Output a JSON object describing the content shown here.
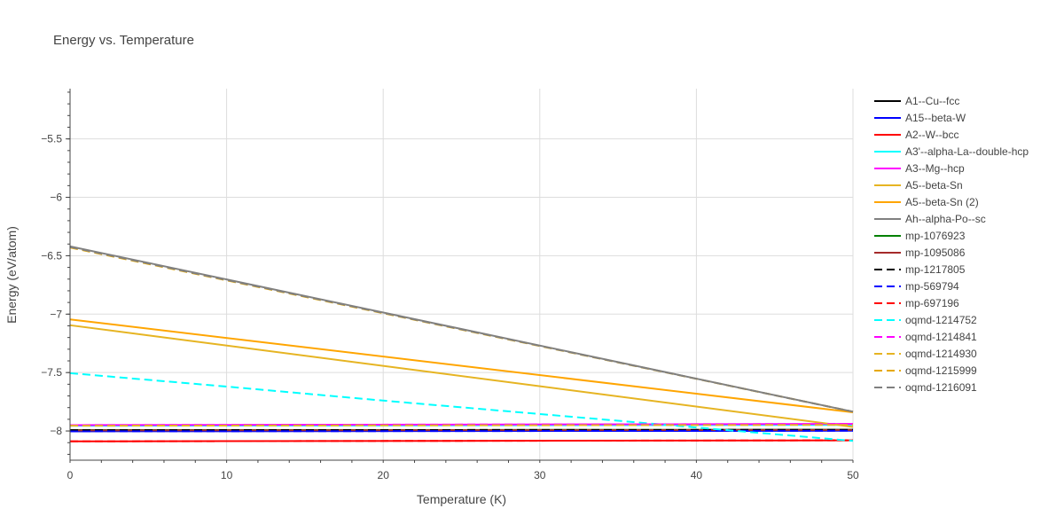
{
  "chart_data": {
    "type": "line",
    "title": "Energy vs. Temperature",
    "xlabel": "Temperature (K)",
    "ylabel": "Energy (eV/atom)",
    "xlim": [
      0,
      50
    ],
    "ylim": [
      -8.25,
      -5.07
    ],
    "x_ticks": [
      0,
      10,
      20,
      30,
      40,
      50
    ],
    "x_tick_labels": [
      "0",
      "10",
      "20",
      "30",
      "40",
      "50"
    ],
    "y_ticks": [
      -8,
      -7.5,
      -7,
      -6.5,
      -6,
      -5.5
    ],
    "y_tick_labels": [
      "−8",
      "−7.5",
      "−7",
      "−6.5",
      "−6",
      "−5.5"
    ],
    "grid": true,
    "legend_position": "right",
    "series": [
      {
        "name": "A1--Cu--fcc",
        "color": "#000000",
        "dash": "solid",
        "x": [
          0,
          50
        ],
        "y": [
          -7.993,
          -7.99
        ]
      },
      {
        "name": "A15--beta-W",
        "color": "#0000ff",
        "dash": "solid",
        "x": [
          0,
          50
        ],
        "y": [
          -8.003,
          -7.998
        ]
      },
      {
        "name": "A2--W--bcc",
        "color": "#ff0000",
        "dash": "solid",
        "x": [
          0,
          50
        ],
        "y": [
          -8.089,
          -8.08
        ]
      },
      {
        "name": "A3'--alpha-La--double-hcp",
        "color": "#00ffff",
        "dash": "solid",
        "x": [
          0,
          50
        ],
        "y": [
          -7.955,
          -7.948
        ]
      },
      {
        "name": "A3--Mg--hcp",
        "color": "#ff00ff",
        "dash": "solid",
        "x": [
          0,
          50
        ],
        "y": [
          -7.95,
          -7.94
        ]
      },
      {
        "name": "A5--beta-Sn",
        "color": "#e6b422",
        "dash": "solid",
        "x": [
          0,
          50
        ],
        "y": [
          -7.095,
          -7.965
        ]
      },
      {
        "name": "A5--beta-Sn (2)",
        "color": "#ffa500",
        "dash": "solid",
        "x": [
          0,
          50
        ],
        "y": [
          -7.045,
          -7.84
        ]
      },
      {
        "name": "Ah--alpha-Po--sc",
        "color": "#808080",
        "dash": "solid",
        "x": [
          0,
          50
        ],
        "y": [
          -6.42,
          -7.835
        ]
      },
      {
        "name": "mp-1076923",
        "color": "#008000",
        "dash": "solid",
        "x": [
          0,
          50
        ],
        "y": [
          -7.993,
          -7.99
        ]
      },
      {
        "name": "mp-1095086",
        "color": "#a52a2a",
        "dash": "solid",
        "x": [
          0,
          50
        ],
        "y": [
          -7.995,
          -7.991
        ]
      },
      {
        "name": "mp-1217805",
        "color": "#000000",
        "dash": "dash",
        "x": [
          0,
          50
        ],
        "y": [
          -7.993,
          -7.99
        ]
      },
      {
        "name": "mp-569794",
        "color": "#0000ff",
        "dash": "dash",
        "x": [
          0,
          50
        ],
        "y": [
          -8.003,
          -7.998
        ]
      },
      {
        "name": "mp-697196",
        "color": "#ff0000",
        "dash": "dash",
        "x": [
          0,
          50
        ],
        "y": [
          -8.089,
          -8.08
        ]
      },
      {
        "name": "oqmd-1214752",
        "color": "#00ffff",
        "dash": "dash",
        "x": [
          0,
          10,
          20,
          30,
          40,
          50
        ],
        "y": [
          -7.505,
          -7.62,
          -7.74,
          -7.855,
          -7.97,
          -8.085
        ]
      },
      {
        "name": "oqmd-1214841",
        "color": "#ff00ff",
        "dash": "dash",
        "x": [
          0,
          50
        ],
        "y": [
          -7.95,
          -7.94
        ]
      },
      {
        "name": "oqmd-1214930",
        "color": "#e6b422",
        "dash": "dash",
        "x": [
          0,
          50
        ],
        "y": [
          -7.955,
          -7.948
        ]
      },
      {
        "name": "oqmd-1215999",
        "color": "#e6a800",
        "dash": "dash",
        "x": [
          0,
          50
        ],
        "y": [
          -6.43,
          -7.835
        ]
      },
      {
        "name": "oqmd-1216091",
        "color": "#808080",
        "dash": "dash",
        "x": [
          0,
          50
        ],
        "y": [
          -6.425,
          -7.835
        ]
      }
    ]
  }
}
